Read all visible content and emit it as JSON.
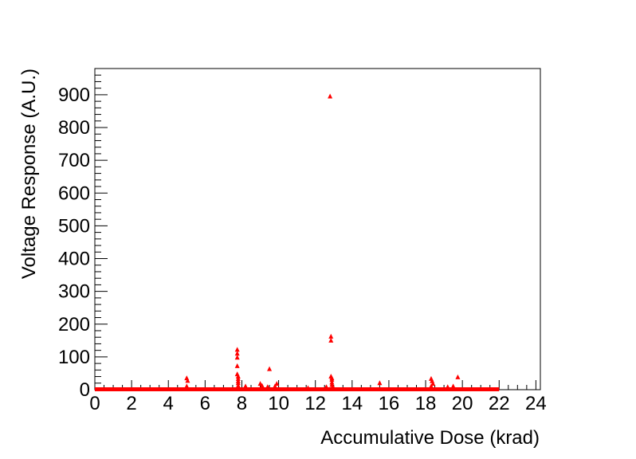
{
  "chart_data": {
    "type": "scatter",
    "title": "",
    "xlabel": "Accumulative Dose (krad)",
    "ylabel": "Voltage Response (A.U.)",
    "xlim": [
      0,
      24.2
    ],
    "ylim": [
      0,
      980
    ],
    "x_ticks": [
      0,
      2,
      4,
      6,
      8,
      10,
      12,
      14,
      16,
      18,
      20,
      22,
      24
    ],
    "y_ticks": [
      0,
      100,
      200,
      300,
      400,
      500,
      600,
      700,
      800,
      900
    ],
    "grid": false,
    "legend": "none",
    "marker": "triangle",
    "color": "#ff0000",
    "baseline": {
      "x_start": 0,
      "x_end": 22.0,
      "y": 0
    },
    "series": [
      {
        "x": [
          5.0,
          5.05,
          5.0,
          7.75,
          7.75,
          7.75,
          7.75,
          7.75,
          7.8,
          7.8,
          7.8,
          7.8,
          7.8,
          8.2,
          8.2,
          9.0,
          9.1,
          9.4,
          9.5,
          9.8,
          9.9,
          11.6,
          12.6,
          12.8,
          12.85,
          12.85,
          12.85,
          12.9,
          12.9,
          12.9,
          12.9,
          12.95,
          15.5,
          18.3,
          18.35,
          18.4,
          18.3,
          19.2,
          19.5,
          19.75
        ],
        "y": [
          35,
          27,
          10,
          122,
          110,
          98,
          72,
          47,
          40,
          33,
          26,
          20,
          12,
          10,
          6,
          18,
          12,
          8,
          63,
          10,
          18,
          5,
          8,
          895,
          162,
          150,
          40,
          35,
          30,
          22,
          15,
          10,
          20,
          33,
          26,
          18,
          10,
          8,
          10,
          38
        ]
      }
    ]
  }
}
